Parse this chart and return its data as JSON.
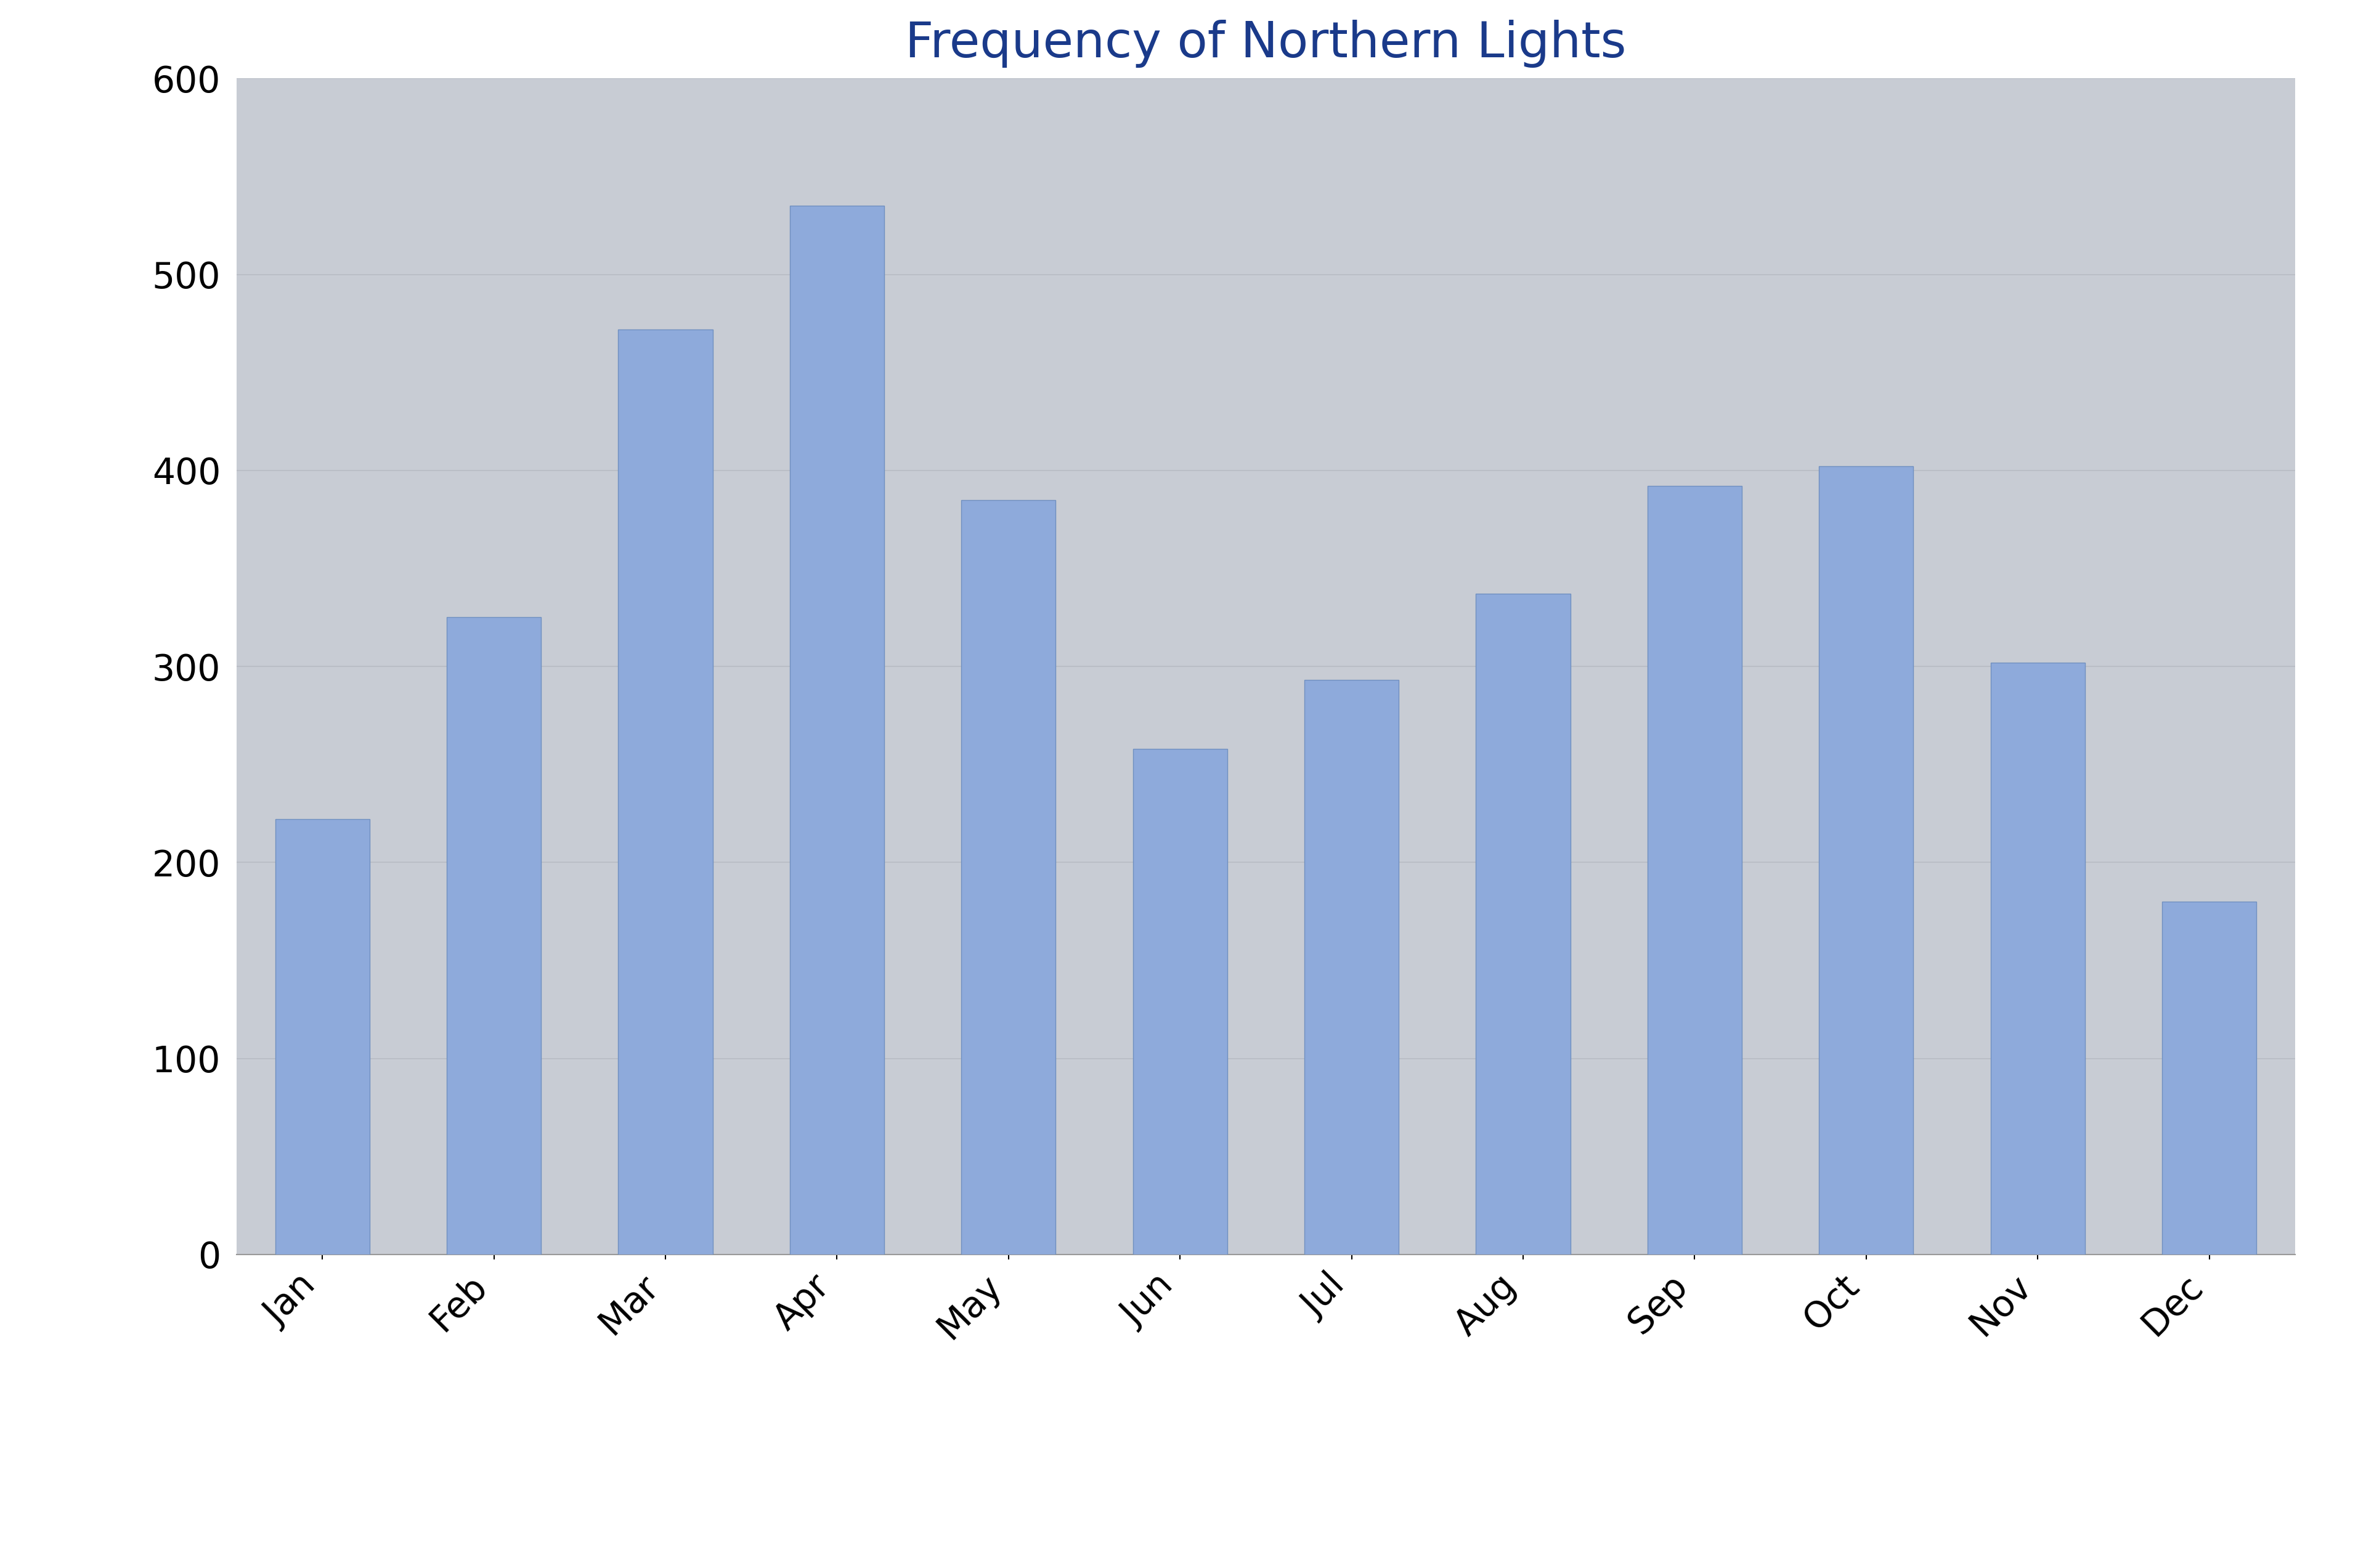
{
  "title": "Frequency of Northern Lights",
  "categories": [
    "Jan",
    "Feb",
    "Mar",
    "Apr",
    "May",
    "Jun",
    "Jul",
    "Aug",
    "Sep",
    "Oct",
    "Nov",
    "Dec"
  ],
  "values": [
    222,
    325,
    472,
    535,
    385,
    258,
    293,
    337,
    392,
    402,
    302,
    180
  ],
  "bar_color": "#8eaadb",
  "bar_edge_color": "#7090c0",
  "plot_bg_color": "#c8ccd4",
  "outer_bg_color": "#ffffff",
  "title_color": "#1a3a8a",
  "ytick_label_color": "#000000",
  "xtick_label_color": "#000000",
  "ylim": [
    0,
    600
  ],
  "yticks": [
    0,
    100,
    200,
    300,
    400,
    500,
    600
  ],
  "title_fontsize": 58,
  "tick_fontsize": 42,
  "grid_color": "#b8bcc4",
  "grid_linewidth": 1.2,
  "bar_width": 0.55
}
